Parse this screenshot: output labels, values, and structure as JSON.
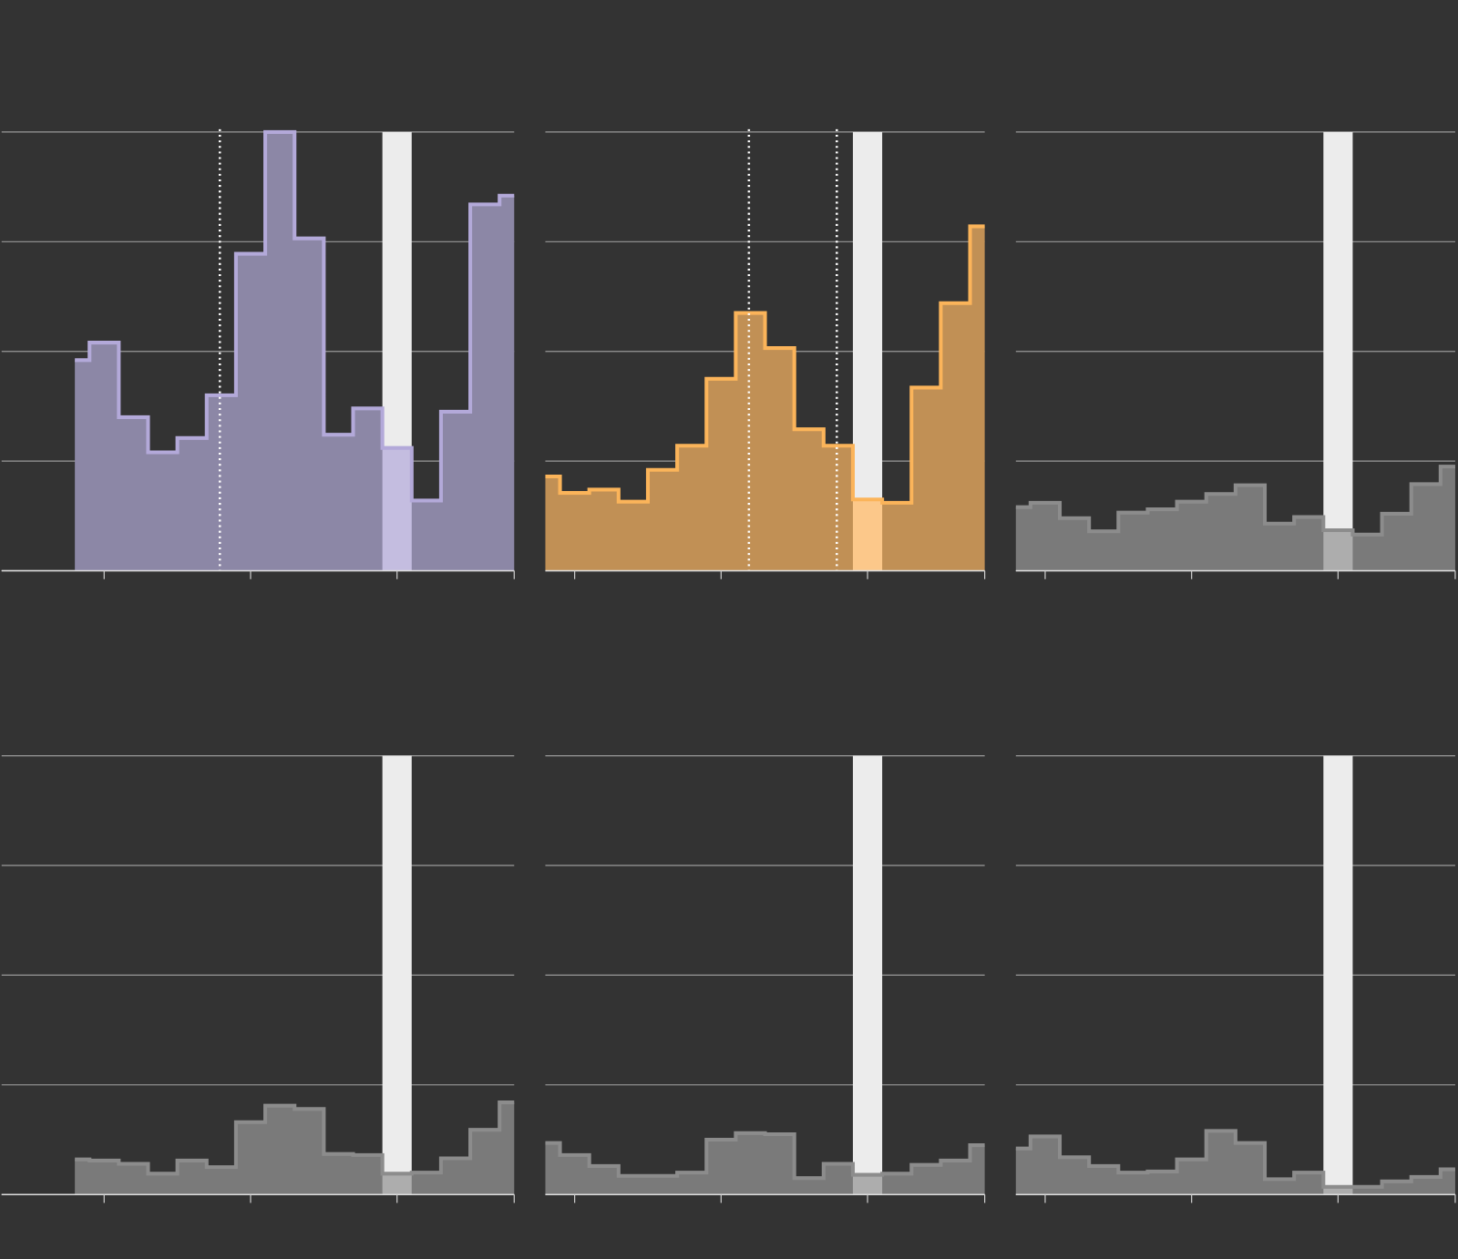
{
  "chart_data": [
    {
      "type": "area",
      "x": [
        -1,
        0,
        1,
        2,
        3,
        4,
        5,
        6,
        7,
        8,
        9,
        10,
        11,
        12,
        13,
        14
      ],
      "values": [
        1.92,
        2.08,
        1.4,
        1.08,
        1.21,
        1.6,
        2.89,
        4.0,
        3.03,
        1.24,
        1.48,
        1.12,
        0.64,
        1.45,
        3.34,
        3.42
      ],
      "color": "#b3a9d9",
      "fill": "#8c87a6",
      "highlight_fill": "#c4bde0",
      "highlight": 10,
      "markers": [
        3.95
      ],
      "xlim": [
        -3.5,
        14
      ],
      "xticks": [
        0,
        5,
        10,
        14
      ],
      "ylim": [
        0,
        4
      ],
      "yticks": [
        0,
        1,
        2,
        3,
        4
      ],
      "grid": true
    },
    {
      "type": "area",
      "x": [
        -1,
        0,
        1,
        2,
        3,
        4,
        5,
        6,
        7,
        8,
        9,
        10,
        11,
        12,
        13,
        14
      ],
      "values": [
        0.86,
        0.71,
        0.74,
        0.63,
        0.92,
        1.14,
        1.75,
        2.35,
        2.03,
        1.29,
        1.14,
        0.65,
        0.62,
        1.67,
        2.44,
        3.14
      ],
      "color": "#fbb45a",
      "fill": "#c19055",
      "highlight_fill": "#fcc88a",
      "highlight": 10,
      "markers": [
        5.95,
        8.95
      ],
      "xlim": [
        -1,
        14
      ],
      "xticks": [
        0,
        5,
        10,
        14
      ],
      "ylim": [
        0,
        4
      ],
      "yticks": [
        0,
        1,
        2,
        3,
        4
      ],
      "grid": true
    },
    {
      "type": "area",
      "x": [
        -1,
        0,
        1,
        2,
        3,
        4,
        5,
        6,
        7,
        8,
        9,
        10,
        11,
        12,
        13,
        14
      ],
      "values": [
        0.58,
        0.62,
        0.48,
        0.36,
        0.53,
        0.56,
        0.63,
        0.7,
        0.78,
        0.43,
        0.49,
        0.37,
        0.33,
        0.52,
        0.79,
        0.95
      ],
      "color": "#8c8c8c",
      "fill": "#7a7a7a",
      "highlight_fill": "#adadad",
      "highlight": 10,
      "markers": [],
      "xlim": [
        -1,
        14
      ],
      "xticks": [
        0,
        5,
        10,
        14
      ],
      "ylim": [
        0,
        4
      ],
      "yticks": [
        0,
        1,
        2,
        3,
        4
      ],
      "grid": true
    },
    {
      "type": "area",
      "x": [
        -1,
        0,
        1,
        2,
        3,
        4,
        5,
        6,
        7,
        8,
        9,
        10,
        11,
        12,
        13,
        14
      ],
      "values": [
        0.32,
        0.31,
        0.28,
        0.19,
        0.31,
        0.25,
        0.66,
        0.81,
        0.78,
        0.37,
        0.36,
        0.19,
        0.2,
        0.33,
        0.59,
        0.84
      ],
      "color": "#8c8c8c",
      "fill": "#7a7a7a",
      "highlight_fill": "#adadad",
      "highlight": 10,
      "markers": [],
      "xlim": [
        -3.5,
        14
      ],
      "xticks": [
        0,
        5,
        10,
        14
      ],
      "ylim": [
        0,
        4
      ],
      "yticks": [
        0,
        1,
        2,
        3,
        4
      ],
      "grid": true
    },
    {
      "type": "area",
      "x": [
        -1,
        0,
        1,
        2,
        3,
        4,
        5,
        6,
        7,
        8,
        9,
        10,
        11,
        12,
        13,
        14
      ],
      "values": [
        0.47,
        0.36,
        0.26,
        0.17,
        0.17,
        0.2,
        0.5,
        0.56,
        0.55,
        0.15,
        0.28,
        0.18,
        0.19,
        0.27,
        0.31,
        0.45
      ],
      "color": "#8c8c8c",
      "fill": "#7a7a7a",
      "highlight_fill": "#adadad",
      "highlight": 10,
      "markers": [],
      "xlim": [
        -1,
        14
      ],
      "xticks": [
        0,
        5,
        10,
        14
      ],
      "ylim": [
        0,
        4
      ],
      "yticks": [
        0,
        1,
        2,
        3,
        4
      ],
      "grid": true
    },
    {
      "type": "area",
      "x": [
        -1,
        0,
        1,
        2,
        3,
        4,
        5,
        6,
        7,
        8,
        9,
        10,
        11,
        12,
        13,
        14
      ],
      "values": [
        0.42,
        0.53,
        0.34,
        0.26,
        0.2,
        0.21,
        0.32,
        0.58,
        0.47,
        0.14,
        0.2,
        0.07,
        0.07,
        0.12,
        0.16,
        0.23
      ],
      "color": "#8c8c8c",
      "fill": "#7a7a7a",
      "highlight_fill": "#adadad",
      "highlight": 10,
      "markers": [],
      "xlim": [
        -1,
        14
      ],
      "xticks": [
        0,
        5,
        10,
        14
      ],
      "ylim": [
        0,
        4
      ],
      "yticks": [
        0,
        1,
        2,
        3,
        4
      ],
      "grid": true
    }
  ]
}
